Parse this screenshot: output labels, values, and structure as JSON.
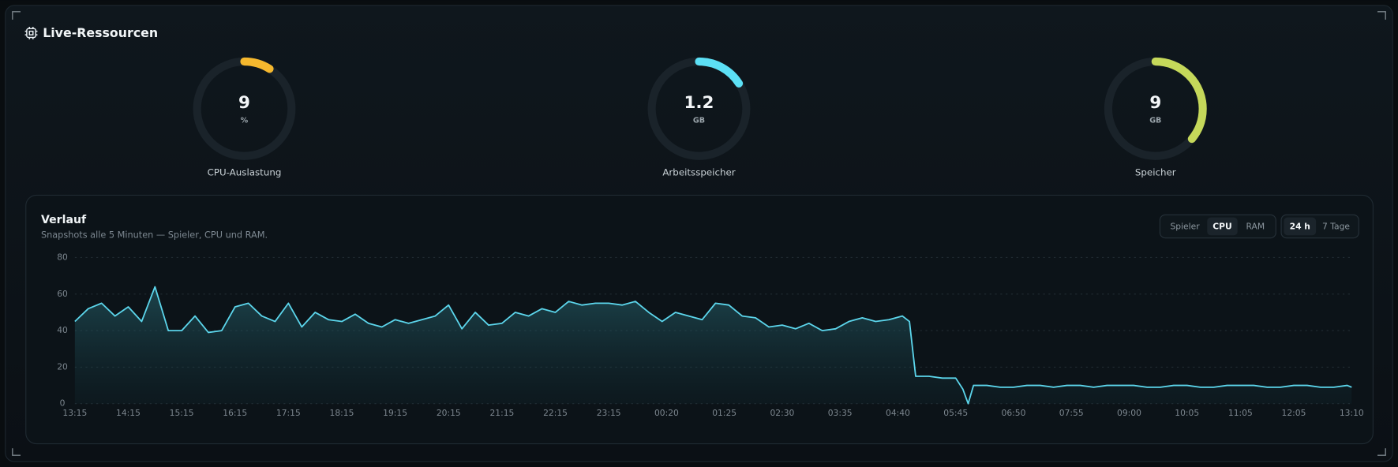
{
  "header": {
    "title": "Live-Ressourcen"
  },
  "gauges": [
    {
      "value": 9,
      "unit": "%",
      "label": "CPU-Auslastung",
      "arc_percent": 9,
      "color": "#f5b82e"
    },
    {
      "value": 1.2,
      "unit": "GB",
      "label": "Arbeitsspeicher",
      "arc_percent": 16,
      "color": "#5ce0f5"
    },
    {
      "value": 9,
      "unit": "GB",
      "label": "Speicher",
      "arc_percent": 36,
      "color": "#c5d85a"
    }
  ],
  "history": {
    "title": "Verlauf",
    "subtitle": "Snapshots alle 5 Minuten — Spieler, CPU und RAM.",
    "metric_tabs": [
      "Spieler",
      "CPU",
      "RAM"
    ],
    "active_metric": 1,
    "range_tabs": [
      "24 h",
      "7 Tage"
    ],
    "active_range": 0
  },
  "chart_data": {
    "type": "area",
    "color": "#5cd6ec",
    "x": [
      0,
      15,
      30,
      45,
      60,
      75,
      90,
      105,
      120,
      135,
      150,
      165,
      180,
      195,
      210,
      225,
      240,
      255,
      270,
      285,
      300,
      315,
      330,
      345,
      360,
      375,
      390,
      405,
      420,
      435,
      450,
      465,
      480,
      495,
      510,
      525,
      540,
      555,
      570,
      585,
      600,
      615,
      630,
      645,
      660,
      675,
      690,
      705,
      720,
      735,
      750,
      765,
      780,
      795,
      810,
      825,
      840,
      855,
      870,
      885,
      900,
      915,
      930,
      938,
      945,
      960,
      975,
      990,
      998,
      1004,
      1010,
      1025,
      1040,
      1055,
      1070,
      1085,
      1100,
      1115,
      1130,
      1145,
      1160,
      1175,
      1190,
      1205,
      1220,
      1235,
      1250,
      1265,
      1280,
      1295,
      1310,
      1325,
      1340,
      1355,
      1370,
      1385,
      1400,
      1415,
      1430,
      1435
    ],
    "values": [
      45,
      52,
      55,
      48,
      53,
      45,
      64,
      40,
      40,
      48,
      39,
      40,
      53,
      55,
      48,
      45,
      55,
      42,
      50,
      46,
      45,
      49,
      44,
      42,
      46,
      44,
      46,
      48,
      54,
      41,
      50,
      43,
      44,
      50,
      48,
      52,
      50,
      56,
      54,
      55,
      55,
      54,
      56,
      50,
      45,
      50,
      48,
      46,
      55,
      54,
      48,
      47,
      42,
      43,
      41,
      44,
      40,
      41,
      45,
      47,
      45,
      46,
      48,
      45,
      15,
      15,
      14,
      14,
      8,
      0,
      10,
      10,
      9,
      9,
      10,
      10,
      9,
      10,
      10,
      9,
      10,
      10,
      10,
      9,
      9,
      10,
      10,
      9,
      9,
      10,
      10,
      10,
      9,
      9,
      10,
      10,
      9,
      9,
      10,
      9
    ],
    "xlim": [
      0,
      1435
    ],
    "xticks": [
      {
        "value": 0,
        "label": "13:15"
      },
      {
        "value": 60,
        "label": "14:15"
      },
      {
        "value": 120,
        "label": "15:15"
      },
      {
        "value": 180,
        "label": "16:15"
      },
      {
        "value": 240,
        "label": "17:15"
      },
      {
        "value": 300,
        "label": "18:15"
      },
      {
        "value": 360,
        "label": "19:15"
      },
      {
        "value": 420,
        "label": "20:15"
      },
      {
        "value": 480,
        "label": "21:15"
      },
      {
        "value": 540,
        "label": "22:15"
      },
      {
        "value": 600,
        "label": "23:15"
      },
      {
        "value": 665,
        "label": "00:20"
      },
      {
        "value": 730,
        "label": "01:25"
      },
      {
        "value": 795,
        "label": "02:30"
      },
      {
        "value": 860,
        "label": "03:35"
      },
      {
        "value": 925,
        "label": "04:40"
      },
      {
        "value": 990,
        "label": "05:45"
      },
      {
        "value": 1055,
        "label": "06:50"
      },
      {
        "value": 1120,
        "label": "07:55"
      },
      {
        "value": 1185,
        "label": "09:00"
      },
      {
        "value": 1250,
        "label": "10:05"
      },
      {
        "value": 1310,
        "label": "11:05"
      },
      {
        "value": 1370,
        "label": "12:05"
      },
      {
        "value": 1435,
        "label": "13:10"
      }
    ],
    "ylim": [
      0,
      80
    ],
    "yticks": [
      0,
      20,
      40,
      60,
      80
    ],
    "grid": true
  }
}
